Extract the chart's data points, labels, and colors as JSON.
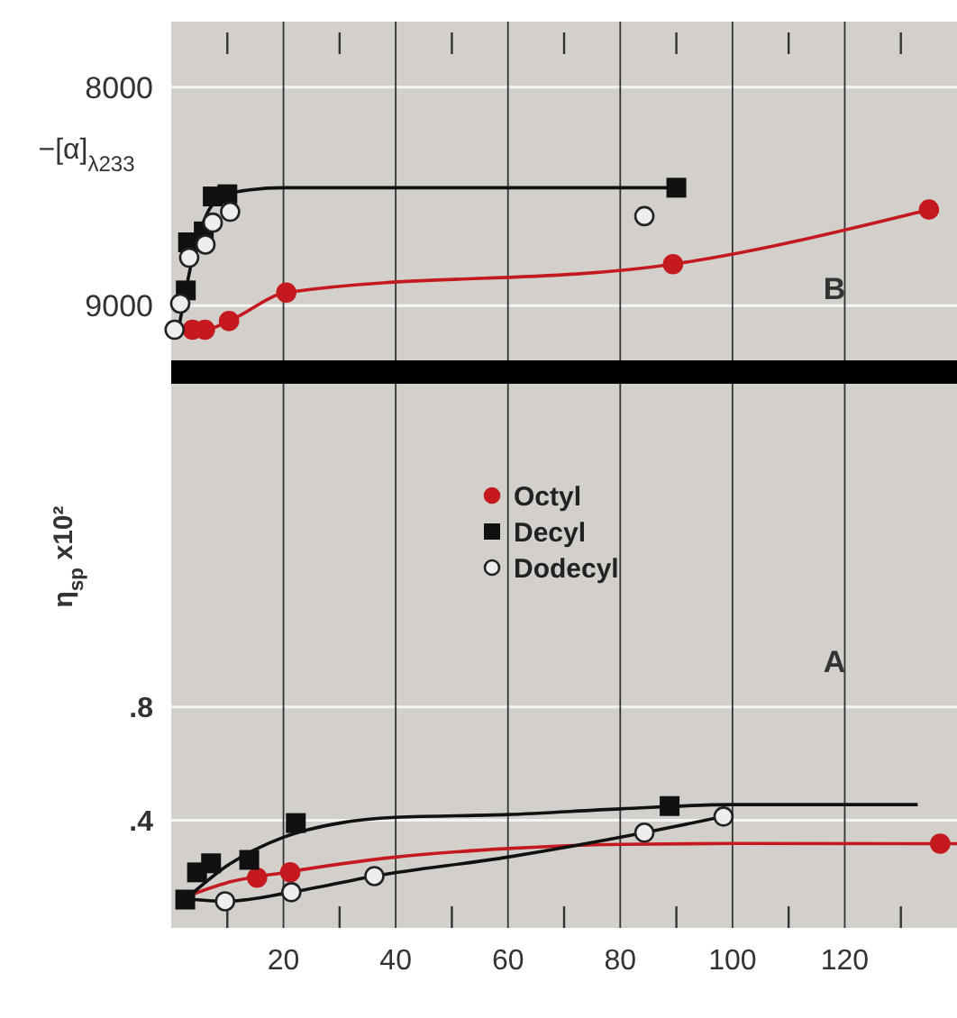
{
  "chart_data": [
    {
      "type": "scatter",
      "ylabel": "−[α]$_{λ233}$",
      "annotations": [
        "B"
      ],
      "xlim": [
        0,
        140
      ],
      "xticks": [
        {
          "value": 20,
          "label": null
        },
        {
          "value": 40,
          "label": null
        },
        {
          "value": 60,
          "label": null
        },
        {
          "value": 80,
          "label": null
        },
        {
          "value": 100,
          "label": null
        },
        {
          "value": 120,
          "label": null
        }
      ],
      "ylim": [
        9250,
        7700
      ],
      "yticks": [
        8000,
        9000
      ],
      "grid": true,
      "tick_labels": "y",
      "legend": false,
      "series": [
        {
          "type": "line",
          "marker": "none",
          "color": "#111111",
          "x": [
            1.5,
            2.6,
            4,
            6,
            9,
            14,
            20,
            50,
            90
          ],
          "values": [
            9080,
            8930,
            8760,
            8600,
            8500,
            8470,
            8460,
            8460,
            8460
          ]
        },
        {
          "type": "line",
          "marker": "circle",
          "color": "#c41a1f",
          "x": [
            3.8,
            6,
            10.3,
            20.5,
            89.4,
            135
          ],
          "values": [
            9110,
            9110,
            9070,
            8940,
            8810,
            8560
          ]
        },
        {
          "type": "scatter",
          "marker": "square",
          "color": "#111111",
          "x": [
            2.6,
            3,
            5.8,
            7.4,
            10,
            90
          ],
          "values": [
            8930,
            8710,
            8660,
            8500,
            8490,
            8460
          ]
        },
        {
          "type": "scatter",
          "marker": "circle",
          "color": "#eeeeee",
          "x": [
            0.6,
            1.6,
            3.2,
            6.1,
            7.4,
            10.5,
            84.3
          ],
          "values": [
            9110,
            8990,
            8780,
            8720,
            8620,
            8570,
            8590
          ]
        }
      ]
    },
    {
      "type": "scatter",
      "ylabel": "η$_{sp}$ x10²",
      "annotations": [
        "A"
      ],
      "xlim": [
        0,
        140
      ],
      "xticks": [
        {
          "value": 10,
          "label": null
        },
        20,
        {
          "value": 30,
          "label": null
        },
        40,
        {
          "value": 50,
          "label": null
        },
        60,
        {
          "value": 70,
          "label": null
        },
        80,
        {
          "value": 90,
          "label": null
        },
        100,
        {
          "value": 110,
          "label": null
        },
        120,
        {
          "value": 130,
          "label": null
        }
      ],
      "ylim": [
        0.02,
        1.94
      ],
      "yticks": [
        {
          "value": 0.4,
          "label": ".4"
        },
        {
          "value": 0.8,
          "label": ".8"
        }
      ],
      "grid": true,
      "legend": "top",
      "series": [
        {
          "type": "line",
          "marker": "none",
          "color": "#c41a1f",
          "x": [
            2.6,
            10,
            20,
            40,
            60,
            80,
            100,
            140
          ],
          "values": [
            0.13,
            0.18,
            0.215,
            0.27,
            0.3,
            0.315,
            0.318,
            0.317
          ]
        },
        {
          "type": "line",
          "marker": "none",
          "color": "#111111",
          "x": [
            2.5,
            10,
            20,
            30,
            40,
            60,
            80,
            100,
            133
          ],
          "values": [
            0.12,
            0.24,
            0.34,
            0.39,
            0.41,
            0.42,
            0.44,
            0.455,
            0.455
          ]
        },
        {
          "type": "line",
          "marker": "none",
          "color": "#111111",
          "x": [
            4,
            9.6,
            21.4,
            36.2,
            60,
            84.3,
            98.4
          ],
          "values": [
            0.12,
            0.114,
            0.146,
            0.203,
            0.27,
            0.356,
            0.413
          ]
        },
        {
          "name": "Octyl",
          "type": "scatter",
          "marker": "circle",
          "color": "#c41a1f",
          "x": [
            15.3,
            21.2,
            137
          ],
          "values": [
            0.197,
            0.216,
            0.317
          ]
        },
        {
          "name": "Decyl",
          "type": "scatter",
          "marker": "square",
          "color": "#111111",
          "x": [
            2.5,
            4.6,
            7.1,
            13.9,
            22.2,
            88.8
          ],
          "values": [
            0.12,
            0.216,
            0.248,
            0.26,
            0.39,
            0.45
          ]
        },
        {
          "name": "Dodecyl",
          "type": "scatter",
          "marker": "circle",
          "color": "#eeeeee",
          "x": [
            9.6,
            21.4,
            36.2,
            84.3,
            98.4
          ],
          "values": [
            0.114,
            0.146,
            0.203,
            0.356,
            0.413
          ]
        }
      ]
    }
  ]
}
